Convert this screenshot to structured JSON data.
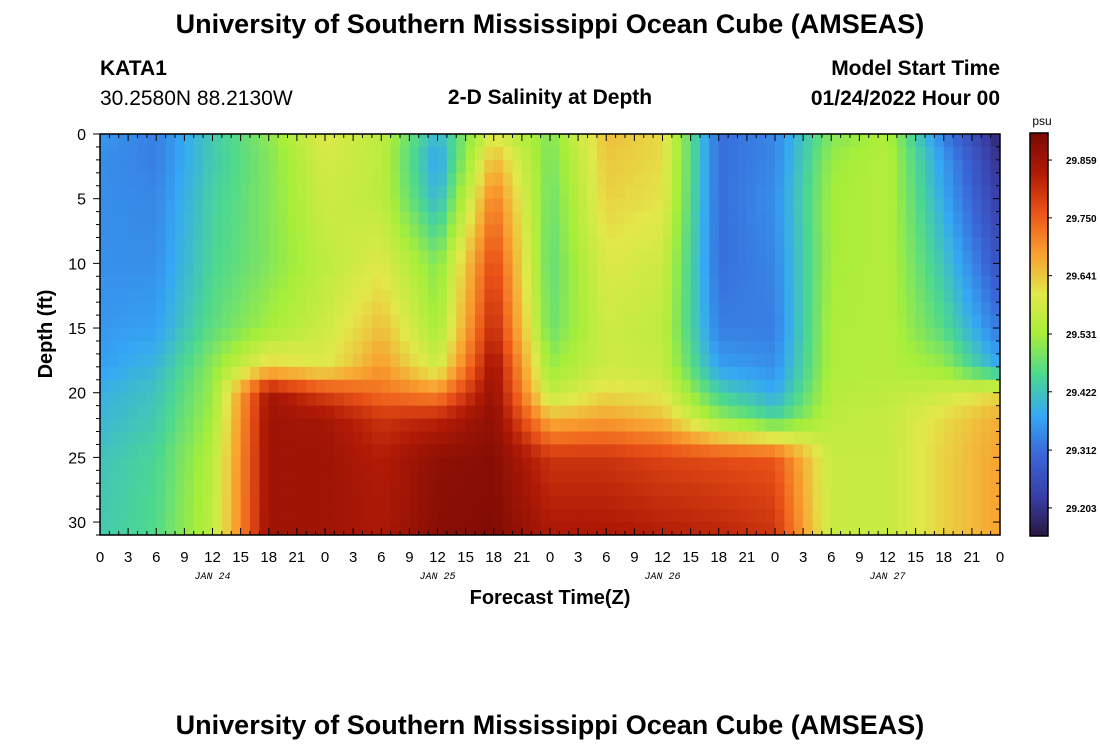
{
  "header": {
    "title": "University of Southern Mississippi Ocean Cube (AMSEAS)",
    "station_id": "KATA1",
    "coords": "30.2580N  88.2130W",
    "subtitle": "2-D Salinity at Depth",
    "model_label": "Model Start Time",
    "model_time": "01/24/2022 Hour 00"
  },
  "footer": {
    "title": "University of Southern Mississippi Ocean Cube (AMSEAS)"
  },
  "colors": {
    "ramp": [
      "#2a1640",
      "#3a3fa8",
      "#3a66d8",
      "#35a8f4",
      "#4cd890",
      "#a6ee3a",
      "#e2e84a",
      "#f9a030",
      "#ec5518",
      "#b01a06",
      "#7a0a04"
    ]
  },
  "chart_data": {
    "type": "heatmap",
    "title": "2-D Salinity at Depth",
    "xlabel": "Forecast Time(Z)",
    "ylabel": "Depth (ft)",
    "x_units": "forecast hour",
    "xlim": [
      0,
      96
    ],
    "ylim": [
      0,
      31
    ],
    "y_inverted": true,
    "x_tick_labels": [
      "0",
      "3",
      "6",
      "9",
      "12",
      "15",
      "18",
      "21",
      "0",
      "3",
      "6",
      "9",
      "12",
      "15",
      "18",
      "21",
      "0",
      "3",
      "6",
      "9",
      "12",
      "15",
      "18",
      "21",
      "0",
      "3",
      "6",
      "9",
      "12",
      "15",
      "18",
      "21",
      "0"
    ],
    "date_labels": [
      {
        "label": "JAN 24",
        "hour": 12
      },
      {
        "label": "JAN 25",
        "hour": 36
      },
      {
        "label": "JAN 26",
        "hour": 60
      },
      {
        "label": "JAN 27",
        "hour": 84
      }
    ],
    "y_ticks": [
      0,
      5,
      10,
      15,
      20,
      25,
      30
    ],
    "colorbar": {
      "units": "psu",
      "min": 29.15,
      "max": 29.91,
      "ticks": [
        "29.859",
        "29.750",
        "29.641",
        "29.531",
        "29.422",
        "29.312",
        "29.203"
      ]
    },
    "grid_hours": [
      0,
      6,
      12,
      18,
      24,
      30,
      36,
      42,
      48,
      54,
      60,
      66,
      72,
      78,
      84,
      90,
      96
    ],
    "grid_depths": [
      0,
      2,
      5,
      10,
      15,
      18,
      20,
      22,
      25,
      31
    ],
    "values": [
      [
        29.36,
        29.33,
        29.43,
        29.51,
        29.6,
        29.56,
        29.4,
        29.6,
        29.5,
        29.65,
        29.62,
        29.31,
        29.34,
        29.5,
        29.54,
        29.33,
        29.18
      ],
      [
        29.35,
        29.33,
        29.43,
        29.5,
        29.59,
        29.56,
        29.37,
        29.66,
        29.49,
        29.64,
        29.62,
        29.31,
        29.34,
        29.52,
        29.55,
        29.36,
        29.2
      ],
      [
        29.35,
        29.34,
        29.44,
        29.5,
        29.58,
        29.56,
        29.4,
        29.72,
        29.48,
        29.63,
        29.61,
        29.31,
        29.35,
        29.53,
        29.55,
        29.38,
        29.22
      ],
      [
        29.35,
        29.35,
        29.45,
        29.5,
        29.56,
        29.6,
        29.5,
        29.78,
        29.47,
        29.6,
        29.58,
        29.31,
        29.34,
        29.53,
        29.55,
        29.42,
        29.26
      ],
      [
        29.36,
        29.37,
        29.47,
        29.53,
        29.58,
        29.65,
        29.53,
        29.82,
        29.48,
        29.58,
        29.56,
        29.33,
        29.33,
        29.54,
        29.55,
        29.46,
        29.32
      ],
      [
        29.37,
        29.4,
        29.51,
        29.63,
        29.6,
        29.69,
        29.58,
        29.86,
        29.52,
        29.58,
        29.57,
        29.37,
        29.35,
        29.54,
        29.55,
        29.52,
        29.38
      ],
      [
        29.39,
        29.42,
        29.52,
        29.85,
        29.78,
        29.73,
        29.7,
        29.87,
        29.56,
        29.62,
        29.6,
        29.44,
        29.38,
        29.55,
        29.56,
        29.58,
        29.62
      ],
      [
        29.4,
        29.43,
        29.53,
        29.86,
        29.85,
        29.8,
        29.82,
        29.88,
        29.66,
        29.68,
        29.65,
        29.52,
        29.45,
        29.56,
        29.57,
        29.62,
        29.67
      ],
      [
        29.42,
        29.45,
        29.55,
        29.86,
        29.86,
        29.83,
        29.88,
        29.89,
        29.8,
        29.8,
        29.78,
        29.77,
        29.76,
        29.57,
        29.57,
        29.63,
        29.68
      ],
      [
        29.43,
        29.46,
        29.56,
        29.86,
        29.86,
        29.84,
        29.89,
        29.9,
        29.84,
        29.84,
        29.83,
        29.82,
        29.8,
        29.57,
        29.57,
        29.63,
        29.68
      ]
    ]
  }
}
